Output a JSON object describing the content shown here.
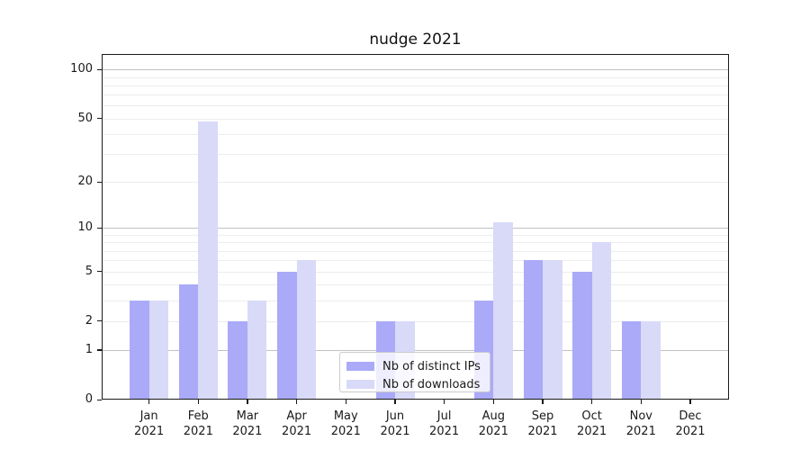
{
  "chart_data": {
    "type": "bar",
    "title": "nudge 2021",
    "categories": [
      "Jan",
      "Feb",
      "Mar",
      "Apr",
      "May",
      "Jun",
      "Jul",
      "Aug",
      "Sep",
      "Oct",
      "Nov",
      "Dec"
    ],
    "category_year": "2021",
    "series": [
      {
        "name": "Nb of distinct IPs",
        "color": "#aaaaf8",
        "values": [
          3,
          4,
          2,
          5,
          0,
          2,
          0,
          3,
          6,
          5,
          2,
          0
        ]
      },
      {
        "name": "Nb of downloads",
        "color": "#d9d9f8",
        "values": [
          3,
          48,
          3,
          6,
          0,
          2,
          0,
          11,
          6,
          8,
          2,
          0
        ]
      }
    ],
    "yscale": "log10(1+y)",
    "ylim": [
      0,
      127
    ],
    "yticks": [
      0,
      1,
      2,
      5,
      10,
      20,
      50,
      100
    ],
    "gridlines": {
      "major": [
        1,
        10,
        100
      ],
      "minor": [
        2,
        3,
        4,
        5,
        6,
        7,
        8,
        9,
        20,
        30,
        40,
        50,
        60,
        70,
        80,
        90
      ]
    },
    "legend": {
      "position": "lower center-right",
      "entries": [
        "Nb of distinct IPs",
        "Nb of downloads"
      ]
    },
    "colors": {
      "grid_major": "#c2c2c2",
      "grid_minor": "#ededed",
      "axis": "#1a1a1a",
      "text": "#1a1a1a",
      "background": "#ffffff"
    }
  }
}
